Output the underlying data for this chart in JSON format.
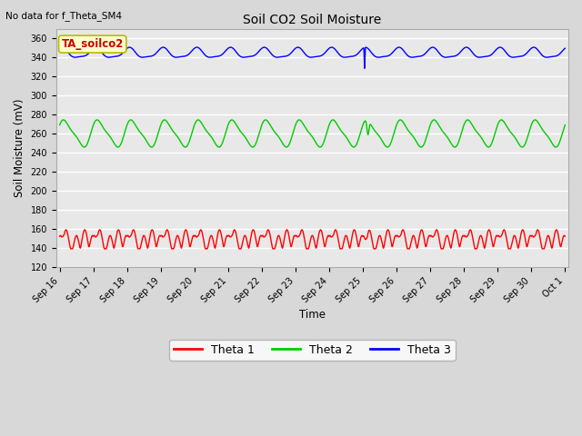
{
  "title": "Soil CO2 Soil Moisture",
  "top_left_text": "No data for f_Theta_SM4",
  "ylabel": "Soil Moisture (mV)",
  "xlabel": "Time",
  "ylim": [
    120,
    370
  ],
  "yticks": [
    120,
    140,
    160,
    180,
    200,
    220,
    240,
    260,
    280,
    300,
    320,
    340,
    360
  ],
  "bg_color": "#d8d8d8",
  "plot_bg_color": "#e8e8e8",
  "legend_label": "TA_soilco2",
  "legend_bg": "#ffffcc",
  "legend_border": "#bbbb00",
  "legend_text_color": "#cc0000",
  "line_colors": {
    "theta1": "#ff0000",
    "theta2": "#00cc00",
    "theta3": "#0000ff"
  },
  "series_labels": [
    "Theta 1",
    "Theta 2",
    "Theta 3"
  ],
  "xtick_labels": [
    "Sep 16",
    "Sep 17",
    "Sep 18",
    "Sep 19",
    "Sep 20",
    "Sep 21",
    "Sep 22",
    "Sep 23",
    "Sep 24",
    "Sep 25",
    "Sep 26",
    "Sep 27",
    "Sep 28",
    "Sep 29",
    "Sep 30",
    "Oct 1"
  ]
}
